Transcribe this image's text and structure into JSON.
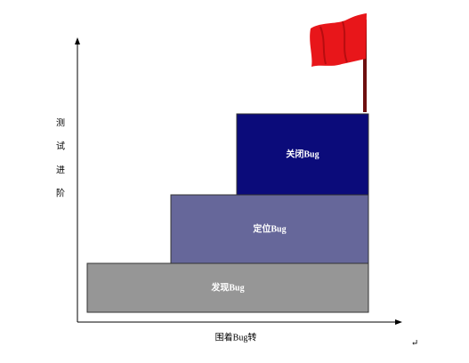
{
  "y_axis": {
    "label": [
      "测",
      "试",
      "进",
      "阶"
    ]
  },
  "x_axis": {
    "label": "围着Bug转"
  },
  "blocks": [
    {
      "label": "发现Bug"
    },
    {
      "label": "定位Bug"
    },
    {
      "label": "关闭Bug"
    }
  ],
  "paragraph_mark": "↵"
}
